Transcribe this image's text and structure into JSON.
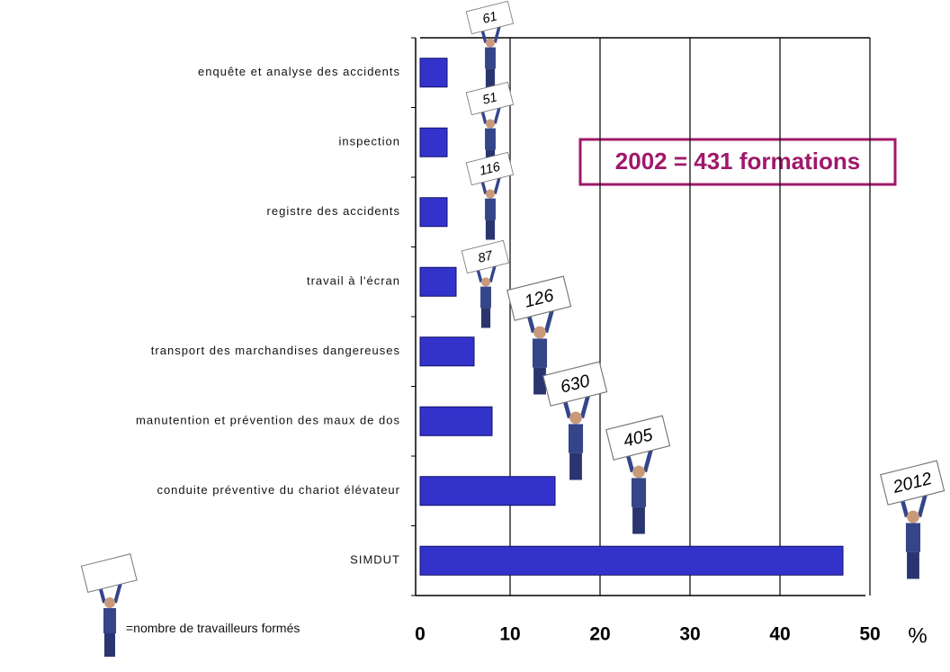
{
  "chart_data": {
    "type": "bar",
    "orientation": "horizontal",
    "categories": [
      "enquête et analyse des accidents",
      "inspection",
      "registre des accidents",
      "travail à l'écran",
      "transport des marchandises dangereuses",
      "manutention et prévention des maux de dos",
      "conduite préventive du chariot élévateur",
      "SIMDUT"
    ],
    "values": [
      3,
      3,
      3,
      4,
      6,
      8,
      15,
      47
    ],
    "worker_counts": [
      61,
      51,
      116,
      87,
      126,
      630,
      405,
      2012
    ],
    "color": "#3333cc",
    "xlim": [
      0,
      50
    ],
    "xticks": [
      0,
      10,
      20,
      30,
      40,
      50
    ],
    "x_label": "%",
    "grid": true,
    "annotation": "2002 = 431 formations",
    "legend_text": "=nombre de travailleurs formés"
  }
}
